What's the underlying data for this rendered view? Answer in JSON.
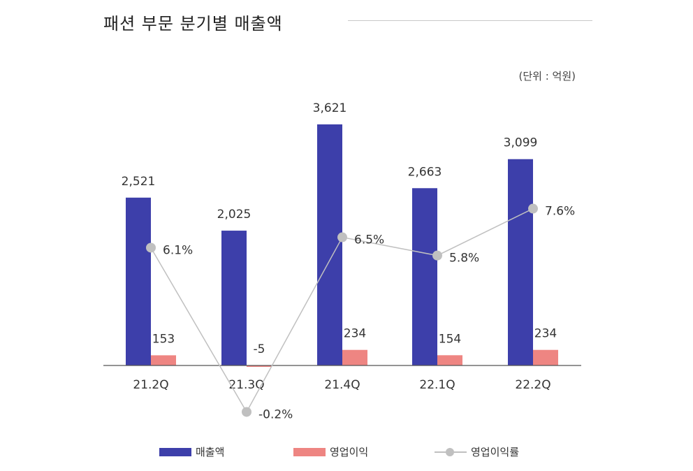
{
  "header": {
    "title": "패션 부문 분기별 매출액",
    "unit": "(단위 : 억원)"
  },
  "legend": {
    "sales": "매출액",
    "operating_profit": "영업이익",
    "operating_margin": "영업이익률"
  },
  "colors": {
    "sales": "#3d3faa",
    "operating_profit": "#ee8582",
    "operating_margin": "#c0c0c0",
    "axis": "#555555"
  },
  "chart_data": {
    "type": "bar",
    "categories": [
      "21.2Q",
      "21.3Q",
      "21.4Q",
      "22.1Q",
      "22.2Q"
    ],
    "series": [
      {
        "name": "매출액",
        "type": "bar",
        "values": [
          2521,
          2025,
          3621,
          2663,
          3099
        ],
        "labels": [
          "2,521",
          "2,025",
          "3,621",
          "2,663",
          "3,099"
        ]
      },
      {
        "name": "영업이익",
        "type": "bar",
        "values": [
          153,
          -5,
          234,
          154,
          234
        ],
        "labels": [
          "153",
          "-5",
          "234",
          "154",
          "234"
        ]
      },
      {
        "name": "영업이익률",
        "type": "line",
        "values": [
          6.1,
          -0.2,
          6.5,
          5.8,
          7.6
        ],
        "labels": [
          "6.1%",
          "-0.2%",
          "6.5%",
          "5.8%",
          "7.6%"
        ]
      }
    ],
    "title": "패션 부문 분기별 매출액",
    "xlabel": "",
    "ylabel": "",
    "unit": "(단위 : 억원)",
    "legend_position": "bottom",
    "grid": false
  }
}
